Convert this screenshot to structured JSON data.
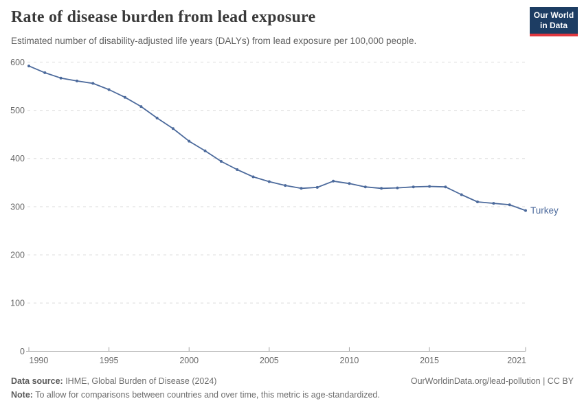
{
  "header": {
    "title": "Rate of disease burden from lead exposure",
    "subtitle": "Estimated number of disability-adjusted life years (DALYs) from lead exposure per 100,000 people.",
    "logo": {
      "line1": "Our World",
      "line2": "in Data",
      "bg_color": "#1d3d63",
      "bar_color": "#e0373e"
    }
  },
  "chart_data": {
    "type": "line",
    "title": "Rate of disease burden from lead exposure",
    "subtitle": "Estimated number of disability-adjusted life years (DALYs) from lead exposure per 100,000 people.",
    "xlabel": "",
    "ylabel": "",
    "xlim": [
      1990,
      2021
    ],
    "ylim": [
      0,
      600
    ],
    "x_ticks": [
      1990,
      1995,
      2000,
      2005,
      2010,
      2015,
      2021
    ],
    "y_ticks": [
      0,
      100,
      200,
      300,
      400,
      500,
      600
    ],
    "grid": "horizontal-dashed",
    "legend_position": "end-of-line-label",
    "x": [
      1990,
      1991,
      1992,
      1993,
      1994,
      1995,
      1996,
      1997,
      1998,
      1999,
      2000,
      2001,
      2002,
      2003,
      2004,
      2005,
      2006,
      2007,
      2008,
      2009,
      2010,
      2011,
      2012,
      2013,
      2014,
      2015,
      2016,
      2017,
      2018,
      2019,
      2020,
      2021
    ],
    "series": [
      {
        "name": "Turkey",
        "color": "#4c6a9c",
        "values": [
          592,
          578,
          567,
          561,
          556,
          543,
          527,
          508,
          484,
          462,
          436,
          416,
          394,
          377,
          362,
          352,
          344,
          338,
          340,
          353,
          348,
          341,
          338,
          339,
          341,
          342,
          341,
          325,
          310,
          307,
          304,
          292
        ]
      }
    ],
    "colors": {
      "line": "#4c6a9c",
      "gridline": "#e2e2e2",
      "axis": "#a3a3a3",
      "tick_label": "#666666"
    }
  },
  "footer": {
    "source_label": "Data source:",
    "source_text": " IHME, Global Burden of Disease (2024)",
    "link_text": "OurWorldinData.org/lead-pollution | CC BY",
    "note_label": "Note:",
    "note_text": " To allow for comparisons between countries and over time, this metric is age-standardized."
  }
}
